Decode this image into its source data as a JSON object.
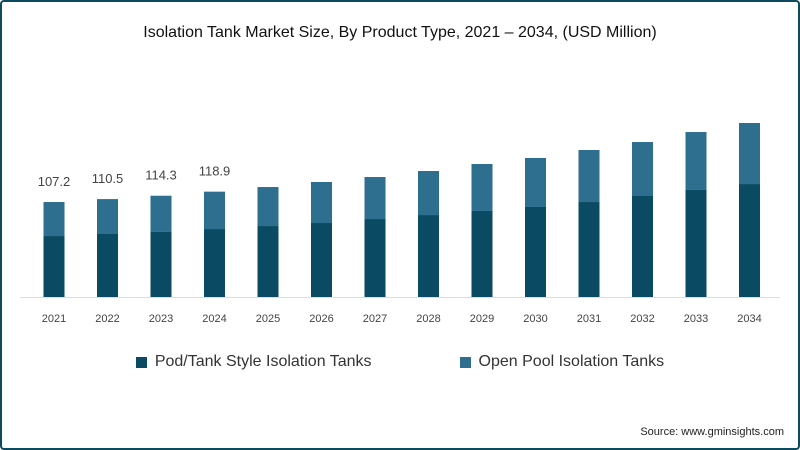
{
  "chart_data": {
    "type": "bar",
    "stacked": true,
    "title": "Isolation Tank Market Size, By Product Type, 2021 – 2034, (USD Million)",
    "xlabel": "",
    "ylabel": "",
    "categories": [
      "2021",
      "2022",
      "2023",
      "2024",
      "2025",
      "2026",
      "2027",
      "2028",
      "2029",
      "2030",
      "2031",
      "2032",
      "2033",
      "2034"
    ],
    "series": [
      {
        "name": "Pod/Tank Style Isolation Tanks",
        "color": "#0b4a63",
        "values": [
          68.8,
          71.1,
          73.4,
          76.7,
          80.1,
          83.5,
          88.0,
          92.5,
          97.1,
          101.6,
          107.2,
          114.0,
          120.8,
          127.5
        ]
      },
      {
        "name": "Open Pool Isolation Tanks",
        "color": "#2e6e8e",
        "values": [
          38.4,
          39.4,
          40.9,
          42.2,
          44.0,
          46.3,
          47.4,
          49.7,
          53.0,
          55.3,
          58.7,
          60.9,
          65.4,
          68.9
        ]
      }
    ],
    "data_labels": [
      "107.2",
      "110.5",
      "114.3",
      "118.9"
    ],
    "ylim": [
      0,
      200
    ],
    "grid": false,
    "legend_position": "bottom"
  },
  "source": "Source: www.gminsights.com"
}
